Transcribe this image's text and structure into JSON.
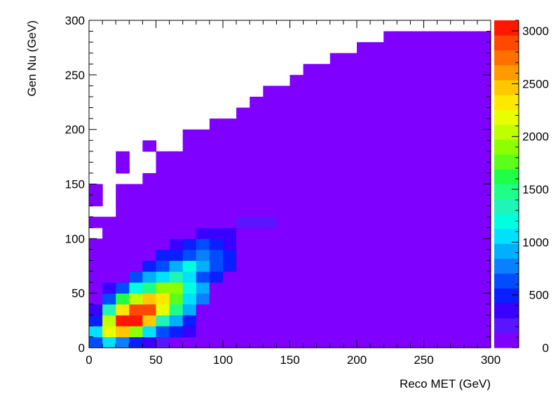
{
  "chart_data": {
    "type": "heatmap",
    "title": "",
    "xlabel": "Reco MET (GeV)",
    "ylabel": "Gen Nu (GeV)",
    "xlim": [
      0,
      300
    ],
    "ylim": [
      0,
      300
    ],
    "bins": 30,
    "bin_width": 10,
    "x_ticks": [
      0,
      50,
      100,
      150,
      200,
      250,
      300
    ],
    "y_ticks": [
      0,
      50,
      100,
      150,
      200,
      250,
      300
    ],
    "colorbar": {
      "range": [
        0,
        3100
      ],
      "ticks": [
        0,
        500,
        1000,
        1500,
        2000,
        2500,
        3000
      ],
      "palette": [
        "#7f00ff",
        "#5a15ff",
        "#3a00ff",
        "#0a1eff",
        "#004cff",
        "#0a7fff",
        "#00b0ff",
        "#00e0ff",
        "#00ffe0",
        "#1ff5b8",
        "#1fff88",
        "#1fff48",
        "#5cff1a",
        "#8cff00",
        "#c0ff00",
        "#e8ff00",
        "#ffe800",
        "#ffc800",
        "#ff9a00",
        "#ff7000",
        "#ff4800",
        "#ff1800"
      ]
    },
    "empty_bins": [
      [
        0,
        10
      ],
      [
        0,
        12
      ],
      [
        0,
        15
      ],
      [
        0,
        16
      ],
      [
        0,
        17
      ],
      [
        0,
        18
      ],
      [
        0,
        19
      ],
      [
        0,
        20
      ],
      [
        0,
        21
      ],
      [
        0,
        22
      ],
      [
        0,
        23
      ],
      [
        0,
        24
      ],
      [
        0,
        25
      ],
      [
        0,
        26
      ],
      [
        0,
        27
      ],
      [
        0,
        28
      ],
      [
        0,
        29
      ],
      [
        1,
        12
      ],
      [
        1,
        13
      ],
      [
        1,
        14
      ],
      [
        1,
        15
      ],
      [
        1,
        16
      ],
      [
        1,
        17
      ],
      [
        1,
        18
      ],
      [
        1,
        19
      ],
      [
        1,
        20
      ],
      [
        1,
        21
      ],
      [
        1,
        22
      ],
      [
        1,
        23
      ],
      [
        1,
        24
      ],
      [
        1,
        25
      ],
      [
        1,
        26
      ],
      [
        1,
        27
      ],
      [
        1,
        28
      ],
      [
        1,
        29
      ],
      [
        2,
        15
      ],
      [
        2,
        18
      ],
      [
        2,
        19
      ],
      [
        2,
        20
      ],
      [
        2,
        21
      ],
      [
        2,
        22
      ],
      [
        2,
        23
      ],
      [
        2,
        24
      ],
      [
        2,
        25
      ],
      [
        2,
        26
      ],
      [
        2,
        27
      ],
      [
        2,
        28
      ],
      [
        2,
        29
      ],
      [
        3,
        15
      ],
      [
        3,
        16
      ],
      [
        3,
        17
      ],
      [
        3,
        18
      ],
      [
        3,
        19
      ],
      [
        3,
        20
      ],
      [
        3,
        21
      ],
      [
        3,
        22
      ],
      [
        3,
        23
      ],
      [
        3,
        24
      ],
      [
        3,
        25
      ],
      [
        3,
        26
      ],
      [
        3,
        27
      ],
      [
        3,
        28
      ],
      [
        3,
        29
      ],
      [
        4,
        16
      ],
      [
        4,
        17
      ],
      [
        4,
        19
      ],
      [
        4,
        20
      ],
      [
        4,
        21
      ],
      [
        4,
        22
      ],
      [
        4,
        23
      ],
      [
        4,
        24
      ],
      [
        4,
        25
      ],
      [
        4,
        26
      ],
      [
        4,
        27
      ],
      [
        4,
        28
      ],
      [
        4,
        29
      ],
      [
        5,
        18
      ],
      [
        5,
        19
      ],
      [
        5,
        20
      ],
      [
        5,
        21
      ],
      [
        5,
        22
      ],
      [
        5,
        23
      ],
      [
        5,
        24
      ],
      [
        5,
        25
      ],
      [
        5,
        26
      ],
      [
        5,
        27
      ],
      [
        5,
        28
      ],
      [
        5,
        29
      ],
      [
        6,
        18
      ],
      [
        6,
        19
      ],
      [
        6,
        20
      ],
      [
        6,
        21
      ],
      [
        6,
        22
      ],
      [
        6,
        23
      ],
      [
        6,
        24
      ],
      [
        6,
        25
      ],
      [
        6,
        26
      ],
      [
        6,
        27
      ],
      [
        6,
        28
      ],
      [
        6,
        29
      ],
      [
        7,
        20
      ],
      [
        7,
        21
      ],
      [
        7,
        22
      ],
      [
        7,
        23
      ],
      [
        7,
        24
      ],
      [
        7,
        25
      ],
      [
        7,
        26
      ],
      [
        7,
        27
      ],
      [
        7,
        28
      ],
      [
        7,
        29
      ],
      [
        8,
        20
      ],
      [
        8,
        21
      ],
      [
        8,
        22
      ],
      [
        8,
        23
      ],
      [
        8,
        24
      ],
      [
        8,
        25
      ],
      [
        8,
        26
      ],
      [
        8,
        27
      ],
      [
        8,
        28
      ],
      [
        8,
        29
      ],
      [
        9,
        21
      ],
      [
        9,
        22
      ],
      [
        9,
        23
      ],
      [
        9,
        24
      ],
      [
        9,
        25
      ],
      [
        9,
        26
      ],
      [
        9,
        27
      ],
      [
        9,
        28
      ],
      [
        9,
        29
      ],
      [
        10,
        21
      ],
      [
        10,
        22
      ],
      [
        10,
        23
      ],
      [
        10,
        24
      ],
      [
        10,
        25
      ],
      [
        10,
        26
      ],
      [
        10,
        27
      ],
      [
        10,
        28
      ],
      [
        10,
        29
      ],
      [
        11,
        22
      ],
      [
        11,
        23
      ],
      [
        11,
        24
      ],
      [
        11,
        25
      ],
      [
        11,
        26
      ],
      [
        11,
        27
      ],
      [
        11,
        28
      ],
      [
        11,
        29
      ],
      [
        12,
        23
      ],
      [
        12,
        24
      ],
      [
        12,
        25
      ],
      [
        12,
        26
      ],
      [
        12,
        27
      ],
      [
        12,
        28
      ],
      [
        12,
        29
      ],
      [
        13,
        24
      ],
      [
        13,
        25
      ],
      [
        13,
        26
      ],
      [
        13,
        27
      ],
      [
        13,
        28
      ],
      [
        13,
        29
      ],
      [
        14,
        24
      ],
      [
        14,
        25
      ],
      [
        14,
        26
      ],
      [
        14,
        27
      ],
      [
        14,
        28
      ],
      [
        14,
        29
      ],
      [
        15,
        25
      ],
      [
        15,
        26
      ],
      [
        15,
        27
      ],
      [
        15,
        28
      ],
      [
        15,
        29
      ],
      [
        16,
        26
      ],
      [
        16,
        27
      ],
      [
        16,
        28
      ],
      [
        16,
        29
      ],
      [
        17,
        26
      ],
      [
        17,
        27
      ],
      [
        17,
        28
      ],
      [
        17,
        29
      ],
      [
        18,
        27
      ],
      [
        18,
        28
      ],
      [
        18,
        29
      ],
      [
        19,
        27
      ],
      [
        19,
        28
      ],
      [
        19,
        29
      ],
      [
        20,
        28
      ],
      [
        20,
        29
      ],
      [
        21,
        28
      ],
      [
        21,
        29
      ],
      [
        22,
        29
      ],
      [
        23,
        29
      ],
      [
        24,
        29
      ],
      [
        25,
        29
      ],
      [
        26,
        29
      ],
      [
        27,
        29
      ],
      [
        28,
        29
      ],
      [
        29,
        29
      ]
    ],
    "hot_bins": [
      [
        0,
        0,
        650
      ],
      [
        1,
        0,
        1000
      ],
      [
        2,
        0,
        800
      ],
      [
        3,
        0,
        500
      ],
      [
        4,
        0,
        300
      ],
      [
        5,
        0,
        200
      ],
      [
        0,
        1,
        1100
      ],
      [
        1,
        1,
        2200
      ],
      [
        2,
        1,
        2500
      ],
      [
        3,
        1,
        1900
      ],
      [
        4,
        1,
        1100
      ],
      [
        5,
        1,
        700
      ],
      [
        6,
        1,
        450
      ],
      [
        7,
        1,
        300
      ],
      [
        0,
        2,
        500
      ],
      [
        1,
        2,
        2050
      ],
      [
        2,
        2,
        3050
      ],
      [
        3,
        2,
        3000
      ],
      [
        4,
        2,
        2400
      ],
      [
        5,
        2,
        1300
      ],
      [
        6,
        2,
        850
      ],
      [
        7,
        2,
        550
      ],
      [
        0,
        3,
        300
      ],
      [
        1,
        3,
        1300
      ],
      [
        2,
        3,
        2300
      ],
      [
        3,
        3,
        2950
      ],
      [
        4,
        3,
        2950
      ],
      [
        5,
        3,
        2150
      ],
      [
        6,
        3,
        1450
      ],
      [
        7,
        3,
        900
      ],
      [
        1,
        4,
        650
      ],
      [
        2,
        4,
        1550
      ],
      [
        3,
        4,
        2100
      ],
      [
        4,
        4,
        2450
      ],
      [
        5,
        4,
        2350
      ],
      [
        6,
        4,
        1700
      ],
      [
        7,
        4,
        1100
      ],
      [
        8,
        4,
        800
      ],
      [
        1,
        5,
        300
      ],
      [
        2,
        5,
        650
      ],
      [
        3,
        5,
        1150
      ],
      [
        4,
        5,
        1500
      ],
      [
        5,
        5,
        1850
      ],
      [
        6,
        5,
        1900
      ],
      [
        7,
        5,
        1200
      ],
      [
        8,
        5,
        850
      ],
      [
        3,
        6,
        700
      ],
      [
        4,
        6,
        950
      ],
      [
        5,
        6,
        1100
      ],
      [
        6,
        6,
        1350
      ],
      [
        7,
        6,
        1000
      ],
      [
        8,
        6,
        700
      ],
      [
        9,
        6,
        550
      ],
      [
        4,
        7,
        450
      ],
      [
        5,
        7,
        700
      ],
      [
        6,
        7,
        950
      ],
      [
        7,
        7,
        1250
      ],
      [
        8,
        7,
        950
      ],
      [
        9,
        7,
        650
      ],
      [
        10,
        7,
        450
      ],
      [
        5,
        8,
        450
      ],
      [
        6,
        8,
        550
      ],
      [
        7,
        8,
        700
      ],
      [
        8,
        8,
        800
      ],
      [
        9,
        8,
        600
      ],
      [
        10,
        8,
        450
      ],
      [
        6,
        9,
        350
      ],
      [
        7,
        9,
        450
      ],
      [
        8,
        9,
        600
      ],
      [
        9,
        9,
        500
      ],
      [
        10,
        9,
        400
      ],
      [
        8,
        10,
        350
      ],
      [
        9,
        10,
        350
      ],
      [
        10,
        10,
        300
      ],
      [
        11,
        11,
        250
      ],
      [
        12,
        11,
        250
      ],
      [
        13,
        11,
        250
      ]
    ],
    "default_bin_color": "#7f00ff"
  }
}
